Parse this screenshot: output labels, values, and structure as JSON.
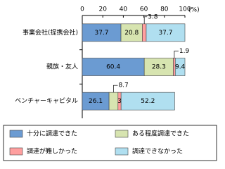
{
  "chart_data": {
    "type": "stacked-bar-horizontal",
    "unit_label": "(%)",
    "categories": [
      "事業会社(提携会社)",
      "親族・友人",
      "ベンチャーキャピタル"
    ],
    "series": [
      {
        "name": "十分に調達できた",
        "color": "#6b9bd2",
        "values": [
          37.7,
          60.4,
          26.1
        ]
      },
      {
        "name": "ある程度調達できた",
        "color": "#d7e4b0",
        "values": [
          20.8,
          28.3,
          8.7
        ]
      },
      {
        "name": "調達が難しかった",
        "color": "#ff9f9f",
        "values": [
          3.8,
          1.9,
          3.0
        ]
      },
      {
        "name": "調達できなかった",
        "color": "#b0dff0",
        "values": [
          37.7,
          9.4,
          52.2
        ]
      }
    ],
    "xlim": [
      0,
      100
    ],
    "xticks": [
      0,
      20,
      40,
      60,
      80,
      100
    ]
  }
}
